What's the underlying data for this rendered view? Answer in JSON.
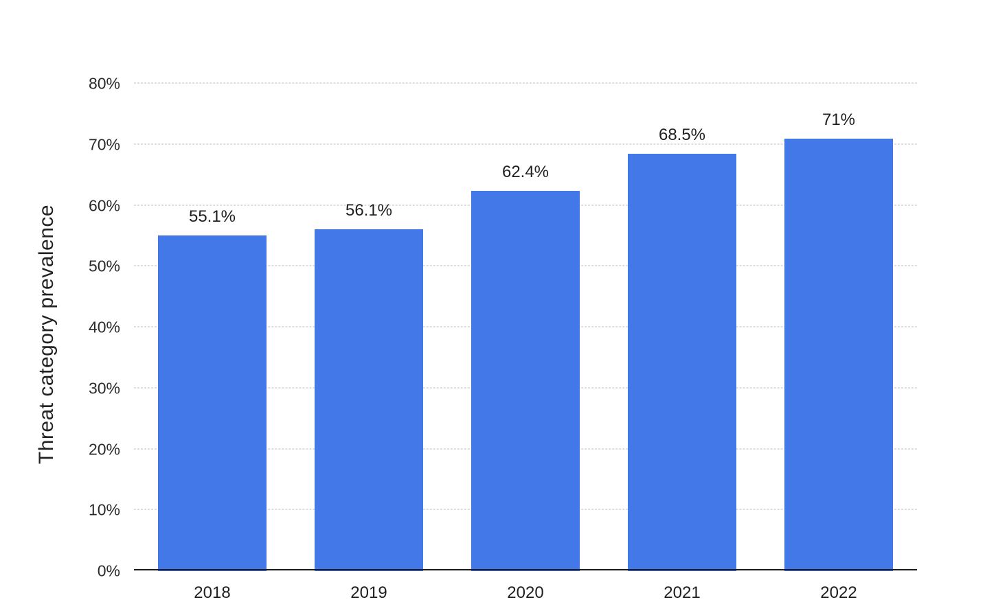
{
  "chart_data": {
    "type": "bar",
    "title": "",
    "xlabel": "",
    "ylabel": "Threat category prevalence",
    "categories": [
      "2018",
      "2019",
      "2020",
      "2021",
      "2022"
    ],
    "values": [
      55.1,
      56.1,
      62.4,
      68.5,
      71
    ],
    "value_labels": [
      "55.1%",
      "56.1%",
      "62.4%",
      "68.5%",
      "71%"
    ],
    "ylim": [
      0,
      80
    ],
    "yticks": [
      0,
      10,
      20,
      30,
      40,
      50,
      60,
      70,
      80
    ],
    "ytick_labels": [
      "0%",
      "10%",
      "20%",
      "30%",
      "40%",
      "50%",
      "60%",
      "70%",
      "80%"
    ],
    "grid": "horizontal-dashed",
    "legend": "none",
    "bar_color": "#4278E8",
    "grid_color": "#bdbdbd",
    "axis_line_color": "#1a1a1a",
    "text_color": "#1f1f1f",
    "background_color": "#ffffff"
  }
}
